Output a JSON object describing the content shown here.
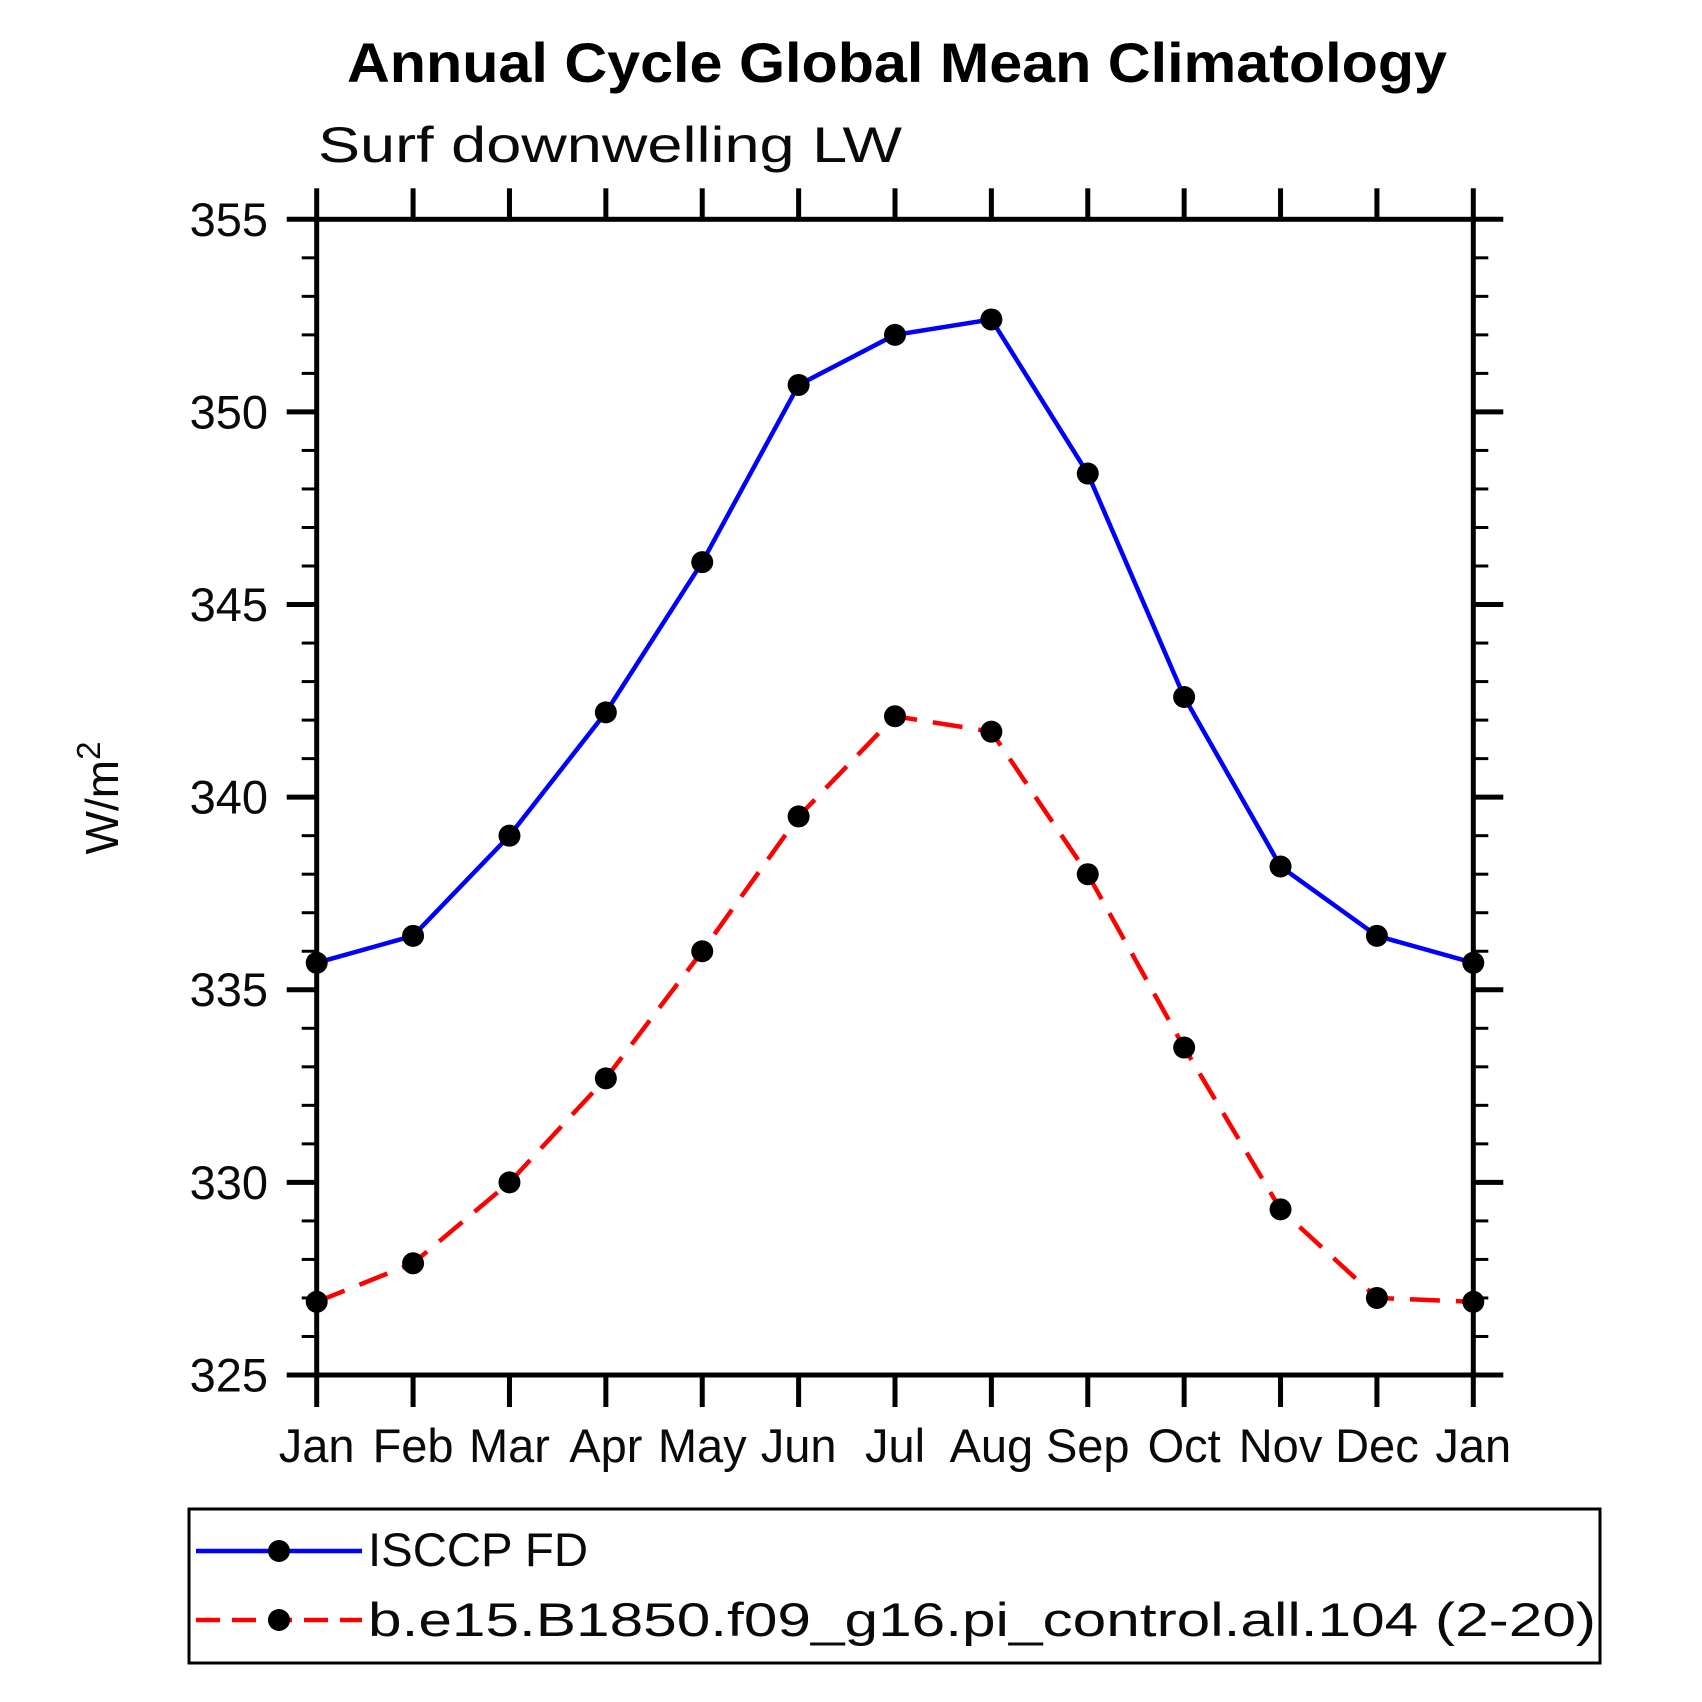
{
  "title": "Annual Cycle Global Mean Climatology",
  "subtitle": "Surf downwelling LW",
  "y_axis": {
    "label": "W/m",
    "label_superscript": "2",
    "unit": "W/m²",
    "major_ticks": [
      355,
      350,
      345,
      340,
      335,
      330,
      325
    ],
    "major_step": 5,
    "minor_step": 1
  },
  "x_axis": {
    "labels": [
      "Jan",
      "Feb",
      "Mar",
      "Apr",
      "May",
      "Jun",
      "Jul",
      "Aug",
      "Sep",
      "Oct",
      "Nov",
      "Dec",
      "Jan"
    ]
  },
  "colors": {
    "background": "#ffffff",
    "axis": "#000000",
    "marker": "#000000",
    "series_obs": "#0000ff",
    "series_model": "#ff0000"
  },
  "chart_data": {
    "type": "line",
    "title": "Annual Cycle Global Mean Climatology",
    "subtitle": "Surf downwelling LW",
    "xlabel": "",
    "ylabel": "W/m²",
    "ylim": [
      325,
      355
    ],
    "y_major_step": 5,
    "y_minor_step": 1,
    "grid": false,
    "legend_position": "bottom",
    "categories": [
      "Jan",
      "Feb",
      "Mar",
      "Apr",
      "May",
      "Jun",
      "Jul",
      "Aug",
      "Sep",
      "Oct",
      "Nov",
      "Dec",
      "Jan"
    ],
    "series": [
      {
        "name": "ISCCP FD",
        "color": "#0000ff",
        "line_style": "solid",
        "marker": "circle",
        "marker_color": "#000000",
        "values": [
          335.7,
          336.4,
          339.0,
          342.2,
          346.1,
          350.7,
          352.0,
          352.4,
          348.4,
          342.6,
          338.2,
          336.4,
          335.7
        ]
      },
      {
        "name": "b.e15.B1850.f09_g16.pi_control.all.104 (2-20)",
        "color": "#ff0000",
        "line_style": "dashed",
        "marker": "circle",
        "marker_color": "#000000",
        "values": [
          326.9,
          327.9,
          330.0,
          332.7,
          336.0,
          339.5,
          342.1,
          341.7,
          338.0,
          333.5,
          329.3,
          327.0,
          326.9
        ]
      }
    ]
  }
}
